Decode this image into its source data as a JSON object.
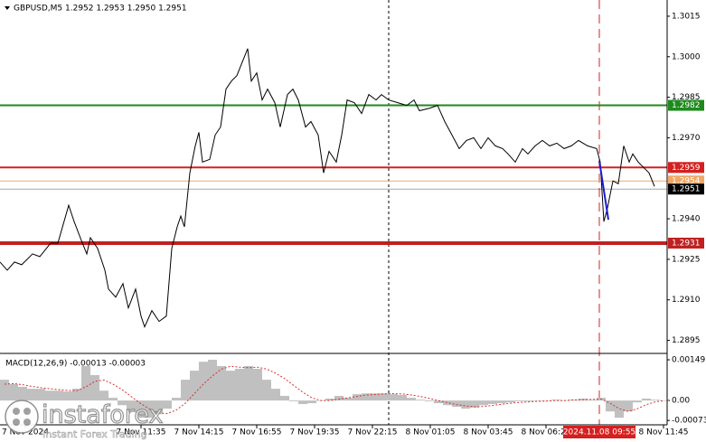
{
  "chart_data": [
    {
      "type": "line",
      "title": "GBPUSD,M5 1.2952 1.2953 1.2950 1.2951",
      "color": "#000000",
      "x": [
        0,
        4,
        8,
        12,
        18,
        22,
        28,
        32,
        38,
        41,
        45,
        48,
        50,
        54,
        58,
        60,
        64,
        68,
        71,
        75,
        78,
        80,
        84,
        88,
        92,
        95,
        98,
        100,
        102,
        105,
        108,
        110,
        112,
        116,
        119,
        122,
        125,
        128,
        131,
        134,
        137,
        139,
        142,
        145,
        148,
        152,
        155,
        159,
        162,
        165,
        169,
        172,
        176,
        179,
        182,
        186,
        189,
        192,
        196,
        200,
        204,
        208,
        211,
        215,
        220,
        225,
        229,
        232,
        238,
        242,
        246,
        250,
        254,
        258,
        262,
        266,
        270,
        274,
        278,
        281,
        285,
        289,
        292,
        296,
        300,
        304,
        308,
        312,
        316,
        320,
        325,
        330,
        332,
        334,
        336,
        339,
        342,
        345,
        348,
        350,
        353,
        356,
        359,
        362
      ],
      "values": [
        1.2924,
        1.2921,
        1.2924,
        1.2923,
        1.2927,
        1.2926,
        1.2931,
        1.2931,
        1.2945,
        1.2939,
        1.2932,
        1.2927,
        1.2933,
        1.2929,
        1.2921,
        1.2914,
        1.2911,
        1.2916,
        1.2907,
        1.2914,
        1.2904,
        1.29,
        1.2906,
        1.2902,
        1.2904,
        1.2929,
        1.2937,
        1.2941,
        1.2937,
        1.2957,
        1.2967,
        1.2972,
        1.2961,
        1.2962,
        1.2971,
        1.2974,
        1.2988,
        1.2991,
        1.2993,
        1.2998,
        1.3003,
        1.2991,
        1.2994,
        1.2984,
        1.2988,
        1.2983,
        1.2974,
        1.2986,
        1.2988,
        1.2984,
        1.2974,
        1.2976,
        1.2971,
        1.2957,
        1.2965,
        1.2961,
        1.2971,
        1.2984,
        1.2983,
        1.2979,
        1.2986,
        1.2984,
        1.2986,
        1.2984,
        1.2983,
        1.2982,
        1.2984,
        1.298,
        1.2981,
        1.2982,
        1.2976,
        1.2971,
        1.2966,
        1.2969,
        1.297,
        1.2966,
        1.297,
        1.2967,
        1.2966,
        1.2964,
        1.2961,
        1.2966,
        1.2964,
        1.2967,
        1.2969,
        1.2967,
        1.2968,
        1.2966,
        1.2967,
        1.2969,
        1.2967,
        1.2966,
        1.2961,
        1.2939,
        1.2944,
        1.2954,
        1.2953,
        1.2967,
        1.2961,
        1.2964,
        1.2961,
        1.2959,
        1.2957,
        1.2952
      ],
      "xlim": [
        0,
        369
      ],
      "ylim": [
        1.28905,
        1.3021
      ],
      "yticks": [
        1.3015,
        {
          "value": 1.3,
          "label": "1.3000"
        },
        1.2985,
        {
          "value": 1.297,
          "label": "1.2970"
        },
        {
          "value": 1.294,
          "label": "1.2940"
        },
        1.2925,
        {
          "value": 1.291,
          "label": "1.2910"
        },
        1.2895
      ],
      "xticks": [
        {
          "value": 14,
          "label": "7 Nov 2024"
        },
        {
          "value": 78,
          "label": "7 Nov 11:35"
        },
        {
          "value": 110,
          "label": "7 Nov 14:15"
        },
        {
          "value": 142,
          "label": "7 Nov 16:55"
        },
        {
          "value": 174,
          "label": "7 Nov 19:35"
        },
        {
          "value": 206,
          "label": "7 Nov 22:15"
        },
        {
          "value": 238,
          "label": "8 Nov 01:05"
        },
        {
          "value": 270,
          "label": "8 Nov 03:45"
        },
        {
          "value": 302,
          "label": "8 Nov 06:25"
        },
        {
          "value": 367,
          "label": "8 Nov 11:45"
        }
      ],
      "levels": [
        {
          "value": 1.2982,
          "color": "#1e8a1e",
          "width": 2
        },
        {
          "value": 1.2959,
          "color": "#d42020",
          "width": 2
        },
        {
          "value": 1.2954,
          "color": "#f0a868",
          "width": 1
        },
        {
          "value": 1.2951,
          "color": "#000000",
          "width": 1
        },
        {
          "value": 1.2931,
          "color": "#c02020",
          "width": 4
        }
      ],
      "period_separator": 215,
      "cursor": {
        "x": 331.5,
        "label": "2024.11.08 09:55",
        "color": "#d42020"
      }
    },
    {
      "type": "macd",
      "title": "MACD(12,26,9) -0.00013 -0.00003",
      "x": [
        0,
        5,
        10,
        15,
        20,
        25,
        30,
        35,
        40,
        45,
        50,
        55,
        60,
        65,
        70,
        75,
        80,
        85,
        90,
        95,
        100,
        105,
        110,
        115,
        120,
        125,
        130,
        135,
        140,
        145,
        150,
        155,
        160,
        165,
        170,
        175,
        180,
        185,
        190,
        195,
        200,
        205,
        210,
        215,
        220,
        225,
        230,
        235,
        240,
        245,
        250,
        255,
        260,
        265,
        270,
        275,
        280,
        285,
        290,
        295,
        300,
        305,
        310,
        315,
        320,
        325,
        330,
        335,
        340,
        345,
        350,
        355,
        360,
        365
      ],
      "histogram": {
        "color": "#c0c0c0",
        "values": [
          0.00076,
          0.0006,
          0.0005,
          0.00043,
          0.00043,
          0.00036,
          0.00036,
          0.00033,
          0.00043,
          0.00126,
          0.00093,
          0.00036,
          0.0001,
          -0.00017,
          -0.0004,
          -0.00056,
          -0.00063,
          -0.0005,
          -0.0003,
          0.0001,
          0.00076,
          0.00109,
          0.00142,
          0.00149,
          0.00126,
          0.00109,
          0.00116,
          0.00126,
          0.00116,
          0.00076,
          0.00043,
          0.00017,
          -3e-05,
          -0.00013,
          -0.0001,
          0,
          7e-05,
          0.00017,
          0.0001,
          0.00023,
          0.00026,
          0.00026,
          0.00026,
          0.00023,
          0.0002,
          0.0001,
          3e-05,
          -3e-05,
          -0.0001,
          -0.00017,
          -0.00023,
          -0.0003,
          -0.00026,
          -0.00017,
          -0.00013,
          -0.0001,
          -7e-05,
          -3e-05,
          -3e-05,
          0,
          0,
          3e-05,
          0,
          3e-05,
          7e-05,
          3e-05,
          0.0001,
          -0.0004,
          -0.00063,
          -0.0004,
          -7e-05,
          7e-05,
          3e-05,
          0
        ]
      },
      "signal": {
        "color": "#d83030",
        "values": [
          0.0006,
          0.00062,
          0.00058,
          0.00052,
          0.00047,
          0.00043,
          0.0004,
          0.00037,
          0.00036,
          0.0005,
          0.0007,
          0.00075,
          0.0006,
          0.0004,
          0.00015,
          -0.0001,
          -0.0003,
          -0.00045,
          -0.00048,
          -0.00035,
          -0.0001,
          0.00025,
          0.0006,
          0.0009,
          0.00115,
          0.00125,
          0.00122,
          0.0012,
          0.00122,
          0.00115,
          0.001,
          0.0008,
          0.00055,
          0.0003,
          0.0001,
          0,
          0,
          5e-05,
          0.0001,
          0.00015,
          0.0002,
          0.00022,
          0.00024,
          0.00025,
          0.00024,
          0.0002,
          0.00015,
          8e-05,
          0,
          -8e-05,
          -0.00015,
          -0.0002,
          -0.00023,
          -0.00022,
          -0.00018,
          -0.00014,
          -0.0001,
          -7e-05,
          -5e-05,
          -3e-05,
          -2e-05,
          0,
          0,
          2e-05,
          3e-05,
          4e-05,
          5e-05,
          -0.0001,
          -0.0003,
          -0.0004,
          -0.0003,
          -0.00015,
          -5e-05,
          0
        ]
      },
      "xlim": [
        0,
        369
      ],
      "ylim": [
        -0.00089,
        0.00169
      ],
      "yticks": [
        0.00149,
        {
          "value": 0,
          "label": "0.00"
        },
        -0.00073
      ]
    }
  ],
  "watermark": {
    "brand": "instaforex",
    "tagline": "Instant Forex Trading"
  }
}
